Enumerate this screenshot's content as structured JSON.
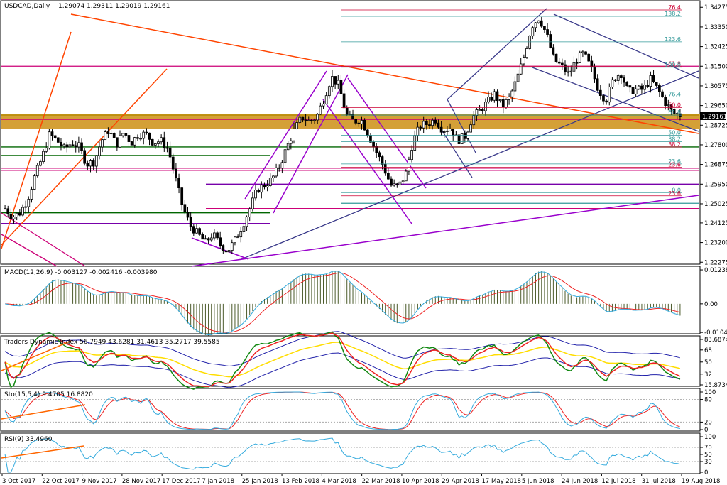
{
  "chart_data": {
    "type": "candlestick",
    "symbol_title": "USDCAD,Daily",
    "ohlc_text": "1.29074 1.29311 1.29019 1.29161",
    "current_price": "1.29161",
    "price_axis": {
      "ticks": [
        "1.34275",
        "1.33350",
        "1.32425",
        "1.31500",
        "1.30575",
        "1.29650",
        "1.28725",
        "1.27800",
        "1.26875",
        "1.25950",
        "1.25025",
        "1.24125",
        "1.23200",
        "1.22275"
      ],
      "ylim": [
        1.2225,
        1.3435
      ]
    },
    "date_axis": [
      "3 Oct 2017",
      "22 Oct 2017",
      "9 Nov 2017",
      "28 Nov 2017",
      "17 Dec 2017",
      "7 Jan 2018",
      "25 Jan 2018",
      "13 Feb 2018",
      "4 Mar 2018",
      "22 Mar 2018",
      "10 Apr 2018",
      "29 Apr 2018",
      "17 May 2018",
      "5 Jun 2018",
      "24 Jun 2018",
      "12 Jul 2018",
      "31 Jul 2018",
      "19 Aug 2018"
    ],
    "close_path": [
      1.248,
      1.244,
      1.246,
      1.252,
      1.263,
      1.272,
      1.283,
      1.28,
      1.276,
      1.279,
      1.277,
      1.269,
      1.27,
      1.28,
      1.285,
      1.278,
      1.284,
      1.279,
      1.283,
      1.283,
      1.279,
      1.28,
      1.276,
      1.262,
      1.248,
      1.24,
      1.236,
      1.232,
      1.236,
      1.231,
      1.228,
      1.233,
      1.24,
      1.248,
      1.257,
      1.259,
      1.262,
      1.268,
      1.277,
      1.285,
      1.291,
      1.289,
      1.291,
      1.3,
      1.31,
      1.306,
      1.292,
      1.289,
      1.29,
      1.283,
      1.275,
      1.268,
      1.259,
      1.258,
      1.264,
      1.28,
      1.287,
      1.288,
      1.29,
      1.285,
      1.286,
      1.28,
      1.282,
      1.291,
      1.294,
      1.298,
      1.302,
      1.296,
      1.3,
      1.309,
      1.32,
      1.334,
      1.338,
      1.33,
      1.318,
      1.315,
      1.311,
      1.318,
      1.321,
      1.314,
      1.304,
      1.299,
      1.309,
      1.312,
      1.303,
      1.304,
      1.304,
      1.309,
      1.304,
      1.298,
      1.293,
      1.292
    ],
    "fib_levels": [
      {
        "label": "76.4",
        "color": "#cc0033"
      },
      {
        "label": "138.2",
        "color": "#339999"
      },
      {
        "label": "123.6",
        "color": "#339999"
      },
      {
        "label": "61.8",
        "color": "#cc0033"
      },
      {
        "label": "100.0",
        "color": "#339999"
      },
      {
        "label": "76.4",
        "color": "#339999"
      },
      {
        "label": "50.0",
        "color": "#cc0033"
      },
      {
        "label": "61.8",
        "color": "#339999"
      },
      {
        "label": "50.0",
        "color": "#339999"
      },
      {
        "label": "38.2",
        "color": "#339999"
      },
      {
        "label": "38.2",
        "color": "#cc0033"
      },
      {
        "label": "23.6",
        "color": "#339999"
      },
      {
        "label": "23.6",
        "color": "#cc0033"
      },
      {
        "label": "0.0",
        "color": "#339999"
      },
      {
        "label": "23.6",
        "color": "#cc0033"
      }
    ],
    "macd": {
      "title": "MACD(12,26,9) -0.003127 -0.002416 -0.003980",
      "ticks": [
        "0.012386",
        "0.00",
        "-0.01044"
      ],
      "ylim": [
        -0.0104,
        0.0124
      ]
    },
    "tdi": {
      "title": "Traders Dynamic Index 56.7949 43.6281 31.4613 35.2717 39.5585",
      "ticks": [
        "83.6874",
        "68",
        "50",
        "32",
        "15.8734"
      ],
      "ylim": [
        15.87,
        83.69
      ]
    },
    "stoch": {
      "title": "Sto(15,5,4) 9.4705 16.8820",
      "ticks": [
        "100",
        "80",
        "20",
        "0"
      ],
      "ylim": [
        0,
        100
      ]
    },
    "rsi": {
      "title": "RSI(9) 33.4960",
      "ticks": [
        "100",
        "70",
        "50",
        "30",
        "0"
      ],
      "ylim": [
        0,
        100
      ]
    }
  }
}
